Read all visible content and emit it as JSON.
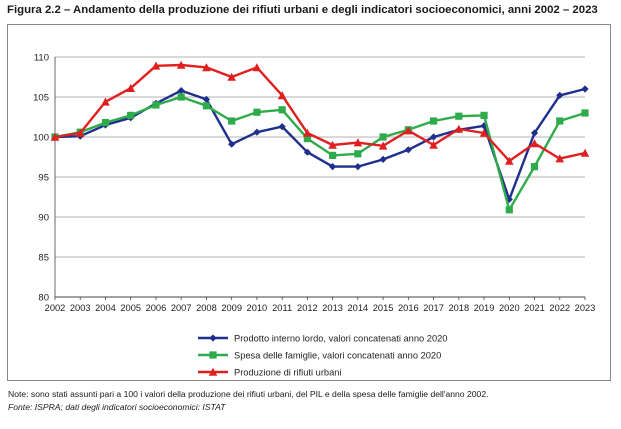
{
  "figure": {
    "title": "Figura 2.2 – Andamento della produzione dei rifiuti urbani e degli indicatori socioeconomici, anni 2002 – 2023",
    "note": "Note: sono stati assunti pari a 100 i valori della produzione dei rifiuti urbani, del PIL e della spesa delle famiglie dell'anno 2002.",
    "source": "Fonte: ISPRA; dati degli indicatori socioeconomici: ISTAT"
  },
  "chart_data": {
    "type": "line",
    "title": "",
    "xlabel": "",
    "ylabel": "",
    "ylim": [
      80,
      110
    ],
    "yticks": [
      80,
      85,
      90,
      95,
      100,
      105,
      110
    ],
    "grid": "horizontal",
    "legend_position": "bottom-center",
    "x": [
      "2002",
      "2003",
      "2004",
      "2005",
      "2006",
      "2007",
      "2008",
      "2009",
      "2010",
      "2011",
      "2012",
      "2013",
      "2014",
      "2015",
      "2016",
      "2017",
      "2018",
      "2019",
      "2020",
      "2021",
      "2022",
      "2023"
    ],
    "series": [
      {
        "name": "Prodotto interno lordo, valori concatenati anno 2020",
        "color": "#1f2f8c",
        "marker": "diamond",
        "values": [
          100,
          100.1,
          101.5,
          102.4,
          104.2,
          105.8,
          104.7,
          99.1,
          100.6,
          101.3,
          98.1,
          96.3,
          96.3,
          97.2,
          98.4,
          100.0,
          100.9,
          101.4,
          92.2,
          100.5,
          105.2,
          106.0
        ]
      },
      {
        "name": "Spesa delle famiglie, valori concatenati anno 2020",
        "color": "#2eab4a",
        "marker": "square",
        "values": [
          100,
          100.6,
          101.8,
          102.7,
          104.0,
          105.0,
          103.9,
          102.0,
          103.1,
          103.4,
          99.8,
          97.7,
          97.9,
          100.0,
          100.9,
          102.0,
          102.6,
          102.7,
          90.9,
          96.3,
          102.0,
          103.0
        ]
      },
      {
        "name": "Produzione di rifiuti urbani",
        "color": "#e02020",
        "marker": "triangle",
        "values": [
          100,
          100.5,
          104.4,
          106.1,
          108.9,
          109.0,
          108.7,
          107.5,
          108.7,
          105.2,
          100.5,
          99.0,
          99.3,
          98.9,
          100.8,
          99.0,
          101.0,
          100.5,
          97.0,
          99.2,
          97.3,
          98.0
        ]
      }
    ]
  }
}
